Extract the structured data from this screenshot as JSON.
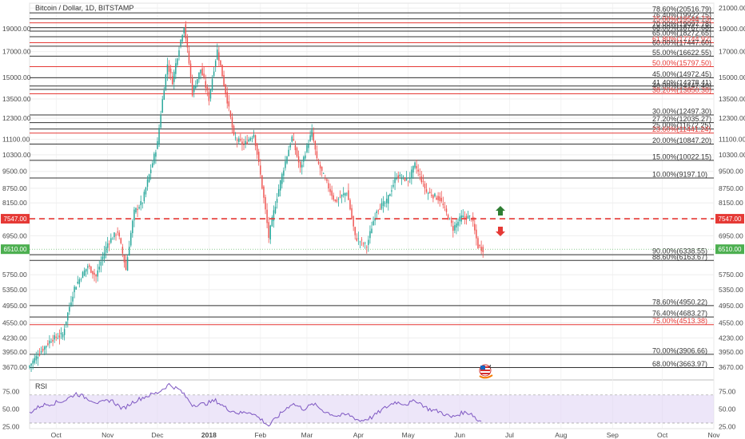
{
  "chart_data": {
    "type": "candlestick",
    "title": "Bitcoin / Dollar, 1D, BITSTAMP",
    "ylim": [
      3450,
      21500
    ],
    "y_ticks": [
      3670,
      3950,
      4230,
      4550,
      4950,
      5350,
      5750,
      6350,
      6950,
      7550,
      8150,
      8750,
      9500,
      10300,
      11100,
      12300,
      13500,
      15000,
      17000,
      19000,
      21000
    ],
    "y_tick_labels": [
      "3670.00",
      "3950.00",
      "4230.00",
      "4550.00",
      "4950.00",
      "5350.00",
      "5750.00",
      "6350.00",
      "6950.00",
      "7550.00",
      "8150.00",
      "8750.00",
      "9500.00",
      "10300.00",
      "11100.00",
      "12300.00",
      "13500.00",
      "15000.00",
      "17000.00",
      "19000.00",
      "21000.00"
    ],
    "x_ticks": [
      "Oct",
      "Nov",
      "Dec",
      "2018",
      "Feb",
      "Mar",
      "Apr",
      "May",
      "Jun",
      "Jul",
      "Aug",
      "Sep",
      "Oct",
      "Nov"
    ],
    "date_range": [
      "2017-09-15",
      "2018-11-01"
    ],
    "price_series": [
      [
        "2017-09-15",
        3700
      ],
      [
        "2017-09-20",
        3900
      ],
      [
        "2017-09-28",
        4200
      ],
      [
        "2017-10-05",
        4300
      ],
      [
        "2017-10-12",
        5400
      ],
      [
        "2017-10-20",
        6000
      ],
      [
        "2017-10-25",
        5700
      ],
      [
        "2017-11-01",
        6700
      ],
      [
        "2017-11-07",
        7100
      ],
      [
        "2017-11-12",
        5900
      ],
      [
        "2017-11-17",
        7800
      ],
      [
        "2017-11-22",
        8200
      ],
      [
        "2017-11-28",
        9900
      ],
      [
        "2017-12-01",
        10900
      ],
      [
        "2017-12-07",
        16000
      ],
      [
        "2017-12-10",
        14700
      ],
      [
        "2017-12-17",
        19300
      ],
      [
        "2017-12-22",
        13900
      ],
      [
        "2017-12-27",
        15600
      ],
      [
        "2018-01-01",
        13500
      ],
      [
        "2018-01-06",
        17100
      ],
      [
        "2018-01-10",
        14500
      ],
      [
        "2018-01-16",
        11200
      ],
      [
        "2018-01-22",
        10800
      ],
      [
        "2018-01-28",
        11400
      ],
      [
        "2018-02-02",
        8800
      ],
      [
        "2018-02-06",
        6900
      ],
      [
        "2018-02-10",
        8100
      ],
      [
        "2018-02-20",
        11200
      ],
      [
        "2018-02-25",
        9600
      ],
      [
        "2018-03-04",
        11500
      ],
      [
        "2018-03-07",
        10000
      ],
      [
        "2018-03-12",
        9100
      ],
      [
        "2018-03-18",
        8200
      ],
      [
        "2018-03-25",
        8600
      ],
      [
        "2018-03-30",
        6900
      ],
      [
        "2018-04-06",
        6600
      ],
      [
        "2018-04-12",
        7900
      ],
      [
        "2018-04-18",
        8200
      ],
      [
        "2018-04-24",
        9300
      ],
      [
        "2018-05-01",
        9100
      ],
      [
        "2018-05-05",
        9800
      ],
      [
        "2018-05-12",
        8600
      ],
      [
        "2018-05-20",
        8300
      ],
      [
        "2018-05-28",
        7200
      ],
      [
        "2018-06-02",
        7600
      ],
      [
        "2018-06-08",
        7600
      ],
      [
        "2018-06-12",
        6600
      ],
      [
        "2018-06-15",
        6510
      ]
    ],
    "current_price": {
      "label": "6510.00",
      "value": 6510
    },
    "level_line": {
      "label": "7547.00",
      "value": 7547,
      "color": "#e53935"
    },
    "fib_levels": [
      {
        "label": "78.60%(20516.79)",
        "value": 20516.79,
        "color": "#333333"
      },
      {
        "label": "76.40%(19922.75)",
        "value": 19922.75,
        "color": "#333333"
      },
      {
        "label": "75.00%(19544.73)",
        "value": 19544.73,
        "color": "#e53935"
      },
      {
        "label": "70.00%(19097.78)",
        "value": 19097.78,
        "color": "#333333"
      },
      {
        "label": "68.00%(18767.68)",
        "value": 18767.68,
        "color": "#333333"
      },
      {
        "label": "65.00%(18272.65)",
        "value": 18272.65,
        "color": "#333333"
      },
      {
        "label": "61.80%(17744.92)",
        "value": 17744.92,
        "color": "#e53935"
      },
      {
        "label": "60.00%(17447.60)",
        "value": 17447.6,
        "color": "#333333"
      },
      {
        "label": "55.00%(16622.55)",
        "value": 16622.55,
        "color": "#333333"
      },
      {
        "label": "50.00%(15797.50)",
        "value": 15797.5,
        "color": "#e53935"
      },
      {
        "label": "45.00%(14972.45)",
        "value": 14972.45,
        "color": "#333333"
      },
      {
        "label": "41.40%(14378.41)",
        "value": 14378.41,
        "color": "#333333"
      },
      {
        "label": "40.00%(14147.40)",
        "value": 14147.4,
        "color": "#333333"
      },
      {
        "label": "38.20%(13850.38)",
        "value": 13850.38,
        "color": "#e53935"
      },
      {
        "label": "30.00%(12497.30)",
        "value": 12497.3,
        "color": "#333333"
      },
      {
        "label": "27.20%(12035.27)",
        "value": 12035.27,
        "color": "#333333"
      },
      {
        "label": "25.00%(11672.25)",
        "value": 11672.25,
        "color": "#333333"
      },
      {
        "label": "23.60%(11441.24)",
        "value": 11441.24,
        "color": "#e53935"
      },
      {
        "label": "20.00%(10847.20)",
        "value": 10847.2,
        "color": "#333333"
      },
      {
        "label": "15.00%(10022.15)",
        "value": 10022.15,
        "color": "#333333"
      },
      {
        "label": "10.00%(9197.10)",
        "value": 9197.1,
        "color": "#333333"
      },
      {
        "label": "90.00%(6338.55)",
        "value": 6338.55,
        "color": "#333333"
      },
      {
        "label": "88.60%(6163.67)",
        "value": 6163.67,
        "color": "#333333"
      },
      {
        "label": "78.60%(4950.22)",
        "value": 4950.22,
        "color": "#333333"
      },
      {
        "label": "76.40%(4683.27)",
        "value": 4683.27,
        "color": "#333333"
      },
      {
        "label": "75.00%(4513.38)",
        "value": 4513.38,
        "color": "#e53935"
      },
      {
        "label": "70.00%(3906.66)",
        "value": 3906.66,
        "color": "#333333"
      },
      {
        "label": "68.00%(3663.97)",
        "value": 3663.97,
        "color": "#333333"
      }
    ],
    "rsi": {
      "label": "RSI",
      "ylim": [
        22,
        88
      ],
      "y_ticks": [
        25,
        50,
        75
      ],
      "y_tick_labels": [
        "25.00",
        "50.00",
        "75.00"
      ],
      "band": [
        30,
        70
      ],
      "values": [
        [
          "2017-09-15",
          45
        ],
        [
          "2017-09-22",
          55
        ],
        [
          "2017-09-29",
          58
        ],
        [
          "2017-10-06",
          62
        ],
        [
          "2017-10-13",
          72
        ],
        [
          "2017-10-20",
          65
        ],
        [
          "2017-10-27",
          58
        ],
        [
          "2017-11-03",
          63
        ],
        [
          "2017-11-10",
          50
        ],
        [
          "2017-11-17",
          61
        ],
        [
          "2017-11-24",
          68
        ],
        [
          "2017-12-01",
          73
        ],
        [
          "2017-12-08",
          85
        ],
        [
          "2017-12-15",
          76
        ],
        [
          "2017-12-22",
          56
        ],
        [
          "2017-12-29",
          57
        ],
        [
          "2018-01-05",
          62
        ],
        [
          "2018-01-12",
          50
        ],
        [
          "2018-01-19",
          44
        ],
        [
          "2018-01-26",
          46
        ],
        [
          "2018-02-02",
          34
        ],
        [
          "2018-02-06",
          26
        ],
        [
          "2018-02-13",
          43
        ],
        [
          "2018-02-20",
          58
        ],
        [
          "2018-02-27",
          50
        ],
        [
          "2018-03-05",
          57
        ],
        [
          "2018-03-12",
          46
        ],
        [
          "2018-03-19",
          40
        ],
        [
          "2018-03-26",
          42
        ],
        [
          "2018-04-02",
          33
        ],
        [
          "2018-04-09",
          38
        ],
        [
          "2018-04-16",
          50
        ],
        [
          "2018-04-23",
          60
        ],
        [
          "2018-04-30",
          57
        ],
        [
          "2018-05-06",
          62
        ],
        [
          "2018-05-13",
          50
        ],
        [
          "2018-05-20",
          46
        ],
        [
          "2018-05-27",
          38
        ],
        [
          "2018-06-03",
          45
        ],
        [
          "2018-06-08",
          44
        ],
        [
          "2018-06-12",
          33
        ],
        [
          "2018-06-15",
          34
        ]
      ],
      "color": "#7e57c2",
      "band_color": "#e1d5f5"
    },
    "colors": {
      "up": "#26a69a",
      "down": "#ef5350",
      "grid": "#eeeeee",
      "tag": "#4caf50",
      "level": "#e53935"
    },
    "indicators": {
      "up_arrow": "up-arrow-icon",
      "down_arrow": "down-arrow-icon",
      "flag": "us-flag-icon",
      "flag_badge": "4"
    }
  }
}
